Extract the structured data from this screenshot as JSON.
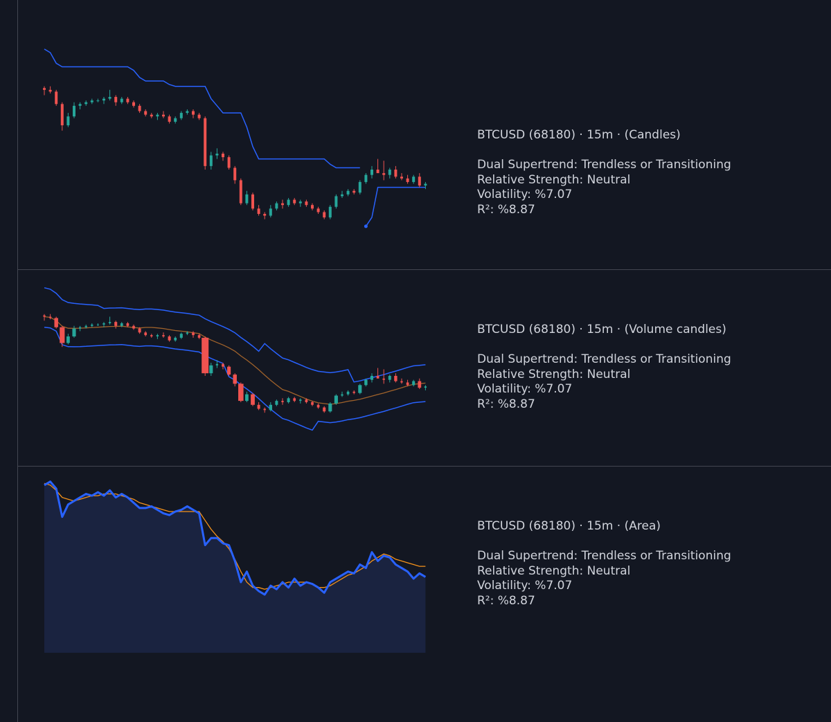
{
  "panels": [
    {
      "legend": {
        "title": "BTCUSD (68180) · 15m · (Candles)",
        "lines": [
          "Dual Supertrend: Trendless or Transitioning",
          "Relative Strength: Neutral",
          "Volatility: %7.07",
          "R²: %8.87"
        ]
      }
    },
    {
      "legend": {
        "title": "BTCUSD (68180) · 15m · (Volume candles)",
        "lines": [
          "Dual Supertrend: Trendless or Transitioning",
          "Relative Strength: Neutral",
          "Volatility: %7.07",
          "R²: %8.87"
        ]
      }
    },
    {
      "legend": {
        "title": "BTCUSD (68180) · 15m · (Area)",
        "lines": [
          "Dual Supertrend: Trendless or Transitioning",
          "Relative Strength: Neutral",
          "Volatility: %7.07",
          "R²: %8.87"
        ]
      }
    }
  ],
  "colors": {
    "background": "#131722",
    "up": "#26a69a",
    "down": "#ef5350",
    "band": "#2962ff",
    "average": "#f7931a",
    "area_line": "#2962ff",
    "area_fill": "#1a2340",
    "text": "#d1d4dc",
    "separator": "#434651"
  },
  "chart_data": [
    {
      "type": "candlestick",
      "series": [
        {
          "name": "",
          "values": [
            [
              96,
              97,
              92,
              95
            ],
            [
              95,
              97,
              93,
              94
            ],
            [
              94,
              95,
              86,
              87
            ],
            [
              87,
              88,
              72,
              75
            ],
            [
              75,
              82,
              74,
              80
            ],
            [
              80,
              88,
              79,
              86
            ],
            [
              86,
              88,
              84,
              87
            ],
            [
              87,
              89,
              86,
              88
            ],
            [
              88,
              90,
              87,
              89
            ],
            [
              89,
              90,
              88,
              89
            ],
            [
              89,
              91,
              87,
              90
            ],
            [
              90,
              95,
              89,
              91
            ],
            [
              91,
              92,
              86,
              88
            ],
            [
              88,
              91,
              87,
              90
            ],
            [
              90,
              91,
              87,
              88
            ],
            [
              88,
              89,
              85,
              86
            ],
            [
              86,
              87,
              82,
              83
            ],
            [
              83,
              84,
              80,
              81
            ],
            [
              81,
              82,
              79,
              80
            ],
            [
              80,
              82,
              78,
              81
            ],
            [
              81,
              83,
              79,
              80
            ],
            [
              80,
              81,
              76,
              77
            ],
            [
              77,
              80,
              76,
              79
            ],
            [
              79,
              83,
              78,
              82
            ],
            [
              82,
              84,
              81,
              83
            ],
            [
              83,
              84,
              79,
              81
            ],
            [
              81,
              82,
              78,
              79
            ],
            [
              79,
              80,
              50,
              52
            ],
            [
              52,
              60,
              50,
              58
            ],
            [
              58,
              62,
              56,
              59
            ],
            [
              59,
              60,
              55,
              57
            ],
            [
              57,
              58,
              50,
              51
            ],
            [
              51,
              52,
              42,
              44
            ],
            [
              44,
              45,
              30,
              31
            ],
            [
              31,
              38,
              30,
              36
            ],
            [
              36,
              37,
              27,
              28
            ],
            [
              28,
              30,
              24,
              25
            ],
            [
              25,
              26,
              22,
              24
            ],
            [
              24,
              30,
              23,
              28
            ],
            [
              28,
              32,
              27,
              31
            ],
            [
              31,
              33,
              28,
              30
            ],
            [
              30,
              34,
              29,
              33
            ],
            [
              33,
              34,
              30,
              31
            ],
            [
              31,
              33,
              29,
              32
            ],
            [
              32,
              33,
              29,
              30
            ],
            [
              30,
              31,
              27,
              28
            ],
            [
              28,
              29,
              25,
              26
            ],
            [
              26,
              27,
              22,
              23
            ],
            [
              23,
              30,
              22,
              29
            ],
            [
              29,
              36,
              28,
              35
            ],
            [
              35,
              38,
              34,
              36
            ],
            [
              36,
              39,
              35,
              38
            ],
            [
              38,
              39,
              36,
              37
            ],
            [
              37,
              44,
              36,
              43
            ],
            [
              43,
              48,
              42,
              47
            ],
            [
              47,
              52,
              45,
              50
            ],
            [
              50,
              56,
              49,
              48
            ],
            [
              48,
              55,
              44,
              47
            ],
            [
              47,
              51,
              45,
              50
            ],
            [
              50,
              52,
              45,
              46
            ],
            [
              46,
              48,
              44,
              45
            ],
            [
              45,
              47,
              42,
              43
            ],
            [
              43,
              47,
              42,
              46
            ],
            [
              46,
              48,
              40,
              41
            ],
            [
              41,
              43,
              39,
              42
            ]
          ]
        },
        {
          "name": "",
          "values": [
            118,
            116,
            110,
            108,
            108,
            108,
            108,
            108,
            108,
            108,
            108,
            108,
            108,
            108,
            108,
            106,
            102,
            100,
            100,
            100,
            100,
            98,
            97,
            97,
            97,
            97,
            97,
            97,
            90,
            86,
            82,
            82,
            82,
            82,
            74,
            63,
            56,
            56,
            56,
            56,
            56,
            56,
            56,
            56,
            56,
            56,
            56,
            56,
            53,
            51,
            51,
            51,
            51,
            51,
            null,
            null,
            null,
            null,
            null,
            null,
            null,
            null,
            null,
            null,
            null
          ]
        },
        {
          "name": "",
          "values": [
            null,
            null,
            null,
            null,
            null,
            null,
            null,
            null,
            null,
            null,
            null,
            null,
            null,
            null,
            null,
            null,
            null,
            null,
            null,
            null,
            null,
            null,
            null,
            null,
            null,
            null,
            null,
            null,
            null,
            null,
            null,
            null,
            null,
            null,
            null,
            null,
            null,
            null,
            null,
            null,
            null,
            null,
            null,
            null,
            null,
            null,
            null,
            null,
            null,
            null,
            null,
            null,
            null,
            null,
            18,
            23,
            40,
            40,
            40,
            40,
            40,
            40,
            40,
            40,
            40
          ]
        }
      ]
    },
    {
      "type": "candlestick",
      "series": [
        {
          "name": "",
          "values": [
            [
              96,
              97,
              92,
              95
            ],
            [
              95,
              97,
              93,
              94
            ],
            [
              94,
              95,
              86,
              87
            ],
            [
              87,
              88,
              72,
              75
            ],
            [
              75,
              82,
              74,
              80
            ],
            [
              80,
              88,
              79,
              86
            ],
            [
              86,
              88,
              84,
              87
            ],
            [
              87,
              89,
              86,
              88
            ],
            [
              88,
              90,
              87,
              89
            ],
            [
              89,
              90,
              88,
              89
            ],
            [
              89,
              91,
              87,
              90
            ],
            [
              90,
              95,
              89,
              91
            ],
            [
              91,
              92,
              86,
              88
            ],
            [
              88,
              91,
              87,
              90
            ],
            [
              90,
              91,
              87,
              88
            ],
            [
              88,
              89,
              85,
              86
            ],
            [
              86,
              87,
              82,
              83
            ],
            [
              83,
              84,
              80,
              81
            ],
            [
              81,
              82,
              79,
              80
            ],
            [
              80,
              82,
              78,
              81
            ],
            [
              81,
              83,
              79,
              80
            ],
            [
              80,
              81,
              76,
              77
            ],
            [
              77,
              80,
              76,
              79
            ],
            [
              79,
              83,
              78,
              82
            ],
            [
              82,
              84,
              81,
              83
            ],
            [
              83,
              84,
              79,
              81
            ],
            [
              81,
              82,
              78,
              79
            ],
            [
              79,
              80,
              50,
              52
            ],
            [
              52,
              60,
              50,
              58
            ],
            [
              58,
              62,
              56,
              59
            ],
            [
              59,
              60,
              55,
              57
            ],
            [
              57,
              58,
              50,
              51
            ],
            [
              51,
              52,
              42,
              44
            ],
            [
              44,
              45,
              30,
              31
            ],
            [
              31,
              38,
              30,
              36
            ],
            [
              36,
              37,
              27,
              28
            ],
            [
              28,
              30,
              24,
              25
            ],
            [
              25,
              26,
              22,
              24
            ],
            [
              24,
              30,
              23,
              28
            ],
            [
              28,
              32,
              27,
              31
            ],
            [
              31,
              33,
              28,
              30
            ],
            [
              30,
              34,
              29,
              33
            ],
            [
              33,
              34,
              30,
              31
            ],
            [
              31,
              33,
              29,
              32
            ],
            [
              32,
              33,
              29,
              30
            ],
            [
              30,
              31,
              27,
              28
            ],
            [
              28,
              29,
              25,
              26
            ],
            [
              26,
              27,
              22,
              23
            ],
            [
              23,
              30,
              22,
              29
            ],
            [
              29,
              36,
              28,
              35
            ],
            [
              35,
              38,
              34,
              36
            ],
            [
              36,
              39,
              35,
              38
            ],
            [
              38,
              39,
              36,
              37
            ],
            [
              37,
              44,
              36,
              43
            ],
            [
              43,
              48,
              42,
              47
            ],
            [
              47,
              52,
              45,
              50
            ],
            [
              50,
              56,
              49,
              48
            ],
            [
              48,
              55,
              44,
              47
            ],
            [
              47,
              51,
              45,
              50
            ],
            [
              50,
              52,
              45,
              46
            ],
            [
              46,
              48,
              44,
              45
            ],
            [
              45,
              47,
              42,
              43
            ],
            [
              43,
              47,
              42,
              46
            ],
            [
              46,
              48,
              40,
              41
            ],
            [
              41,
              43,
              39,
              42
            ]
          ]
        }
      ]
    },
    {
      "type": "area",
      "series": [
        {
          "name": "",
          "values": [
            95,
            97,
            93,
            77,
            84,
            86,
            88,
            90,
            89,
            91,
            89,
            92,
            88,
            90,
            88,
            85,
            82,
            82,
            83,
            81,
            79,
            78,
            80,
            81,
            83,
            81,
            79,
            61,
            65,
            65,
            62,
            61,
            52,
            40,
            46,
            38,
            35,
            33,
            38,
            36,
            40,
            37,
            42,
            38,
            40,
            39,
            37,
            34,
            40,
            42,
            44,
            46,
            45,
            50,
            48,
            57,
            52,
            55,
            54,
            50,
            48,
            46,
            42,
            45,
            43
          ]
        },
        {
          "name": "",
          "values": [
            96,
            95,
            92,
            88,
            87,
            86,
            87,
            88,
            89,
            89,
            90,
            90,
            90,
            89,
            88,
            87,
            85,
            84,
            83,
            82,
            81,
            80,
            80,
            80,
            80,
            80,
            80,
            75,
            70,
            66,
            63,
            59,
            53,
            46,
            40,
            37,
            37,
            36,
            37,
            38,
            39,
            40,
            40,
            40,
            40,
            39,
            37,
            37,
            38,
            40,
            42,
            44,
            45,
            47,
            49,
            52,
            54,
            56,
            55,
            53,
            52,
            51,
            50,
            49,
            49
          ]
        }
      ]
    }
  ]
}
